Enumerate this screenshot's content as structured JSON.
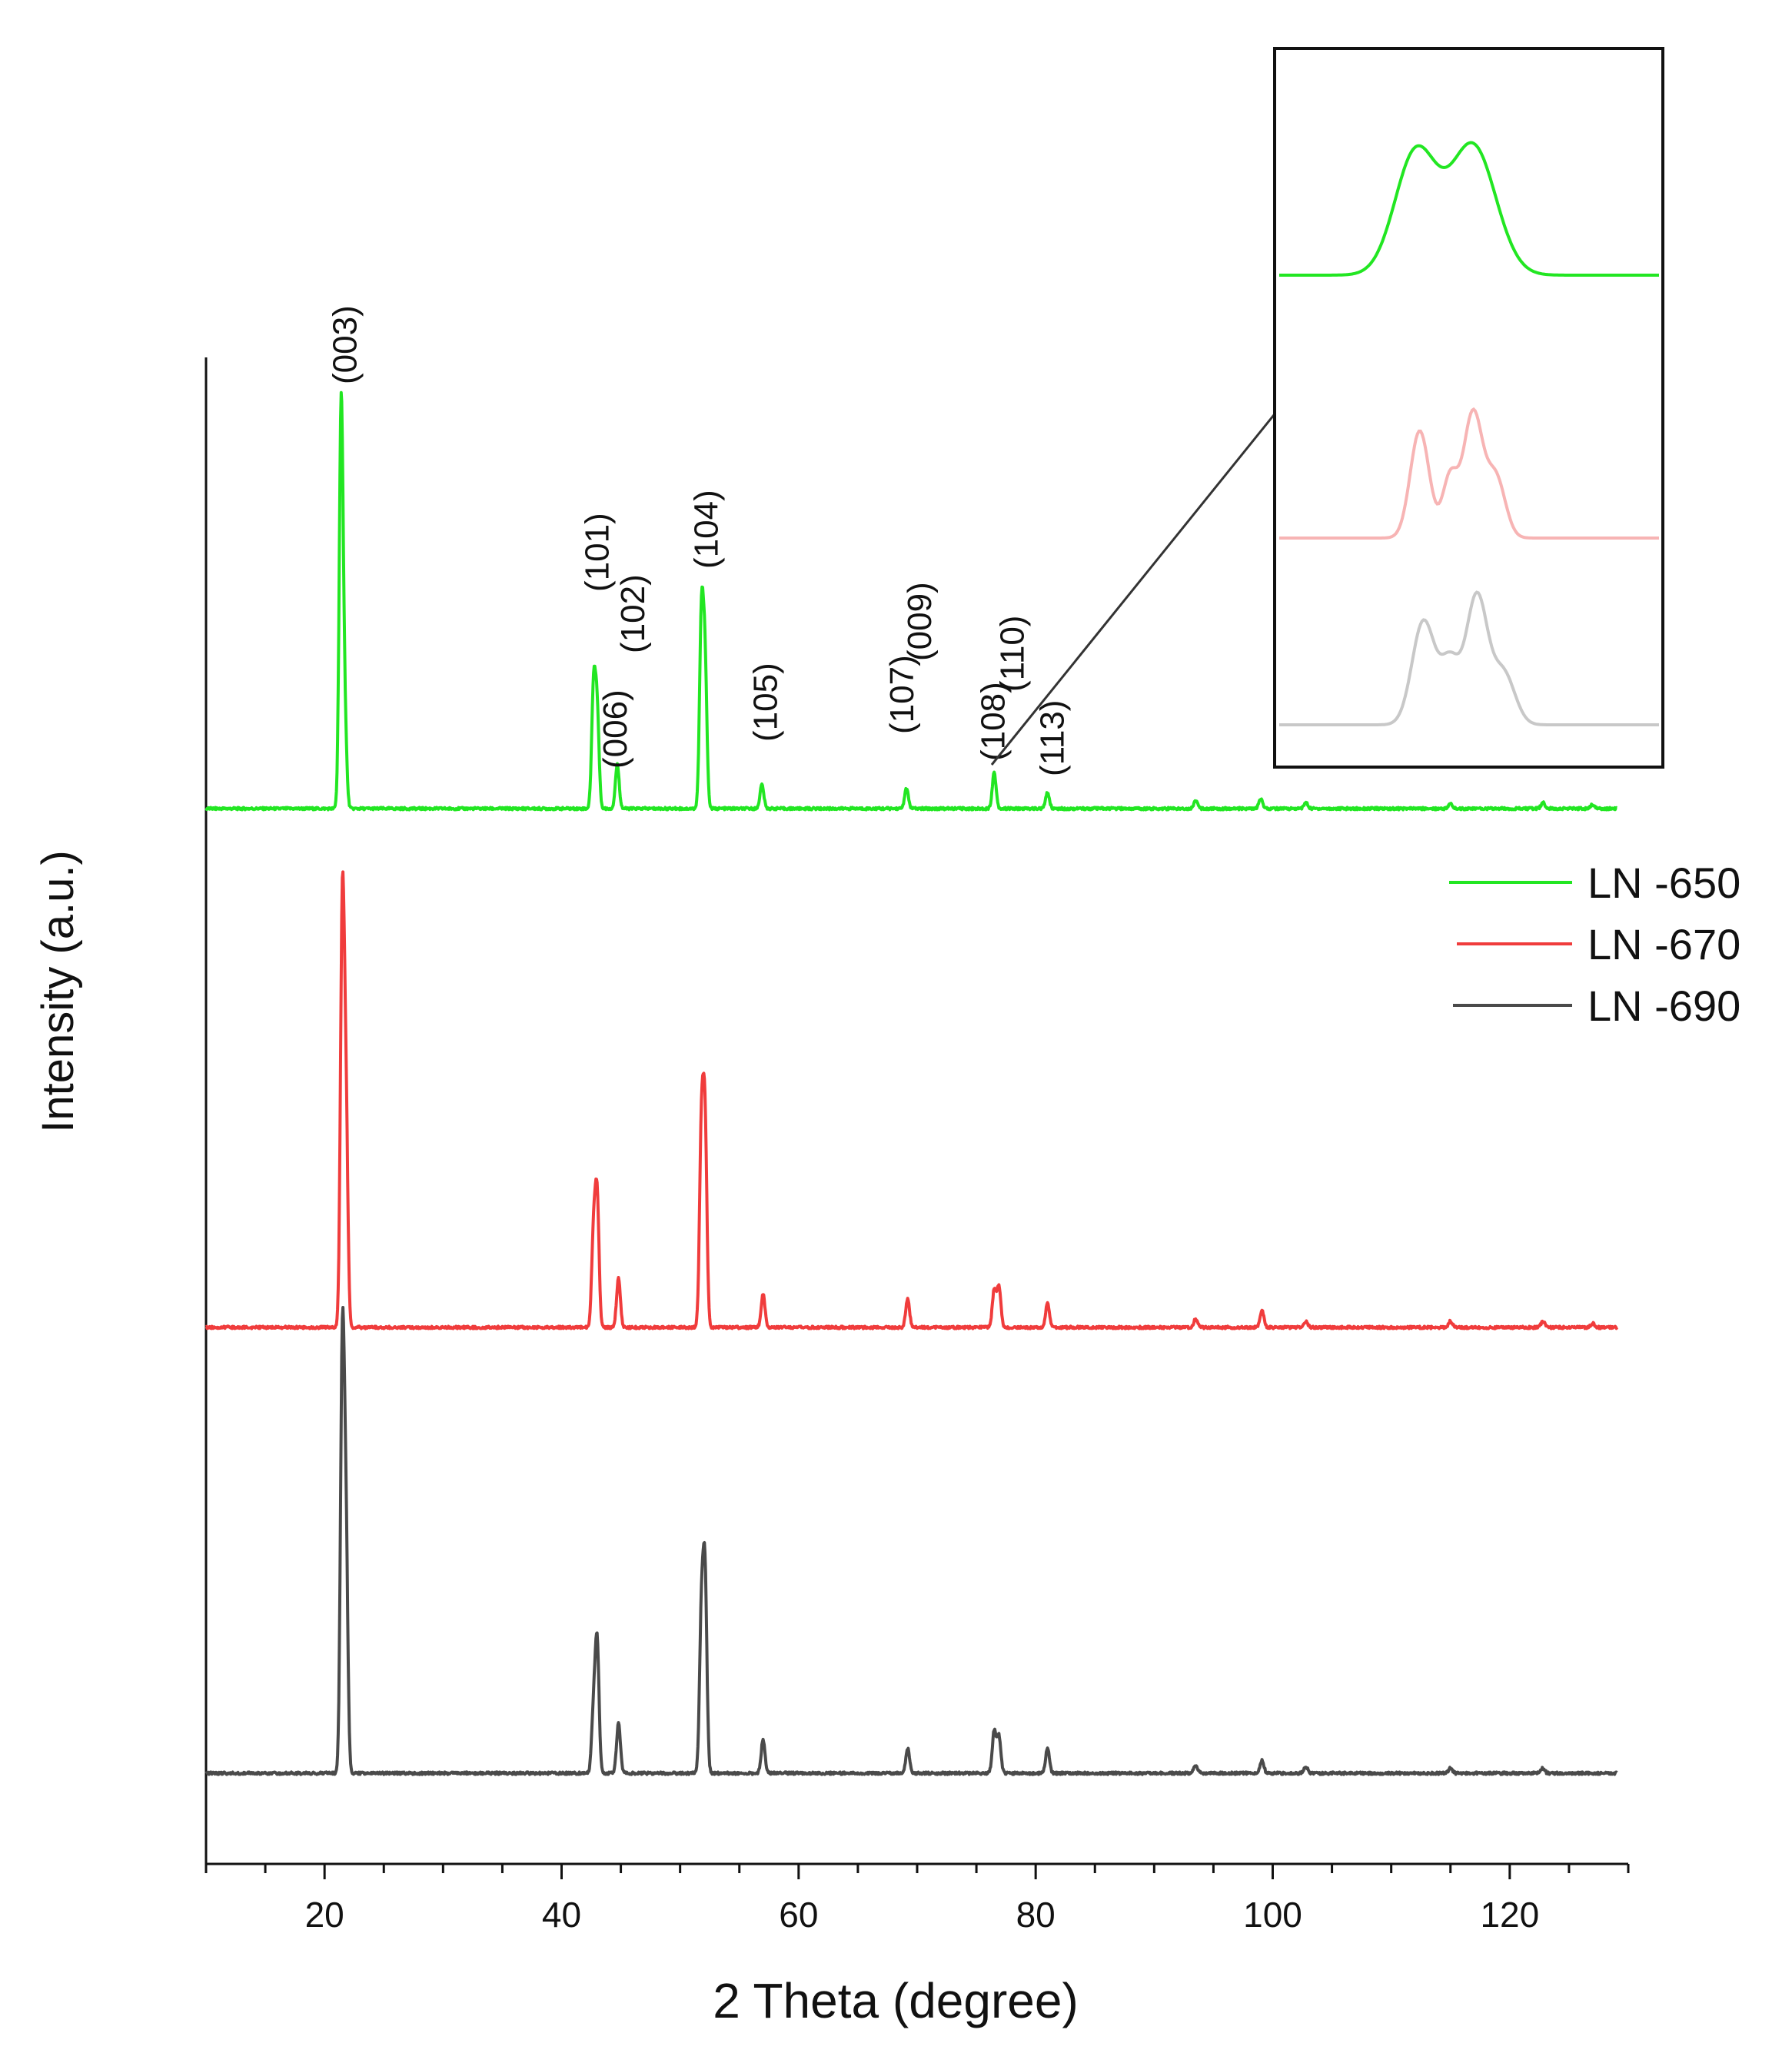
{
  "chart_data": {
    "type": "line",
    "title": "",
    "xlabel": "2 Theta (degree)",
    "ylabel": "Intensity (a.u.)",
    "xlim": [
      10,
      130
    ],
    "xticks": [
      20,
      40,
      60,
      80,
      100,
      120
    ],
    "y_ticks_shown": false,
    "grid": false,
    "legend_position": "right, below inset",
    "series": [
      {
        "name": "LN -650",
        "color": "#22e622",
        "baseline": 0.0,
        "peaks": [
          {
            "x": 21.4,
            "h": 1.0
          },
          {
            "x": 21.7,
            "h": 0.22
          },
          {
            "x": 42.7,
            "h": 0.3
          },
          {
            "x": 43.0,
            "h": 0.24
          },
          {
            "x": 44.7,
            "h": 0.11
          },
          {
            "x": 51.8,
            "h": 0.47
          },
          {
            "x": 52.1,
            "h": 0.36
          },
          {
            "x": 56.9,
            "h": 0.06
          },
          {
            "x": 69.1,
            "h": 0.05
          },
          {
            "x": 76.5,
            "h": 0.09
          },
          {
            "x": 81.0,
            "h": 0.04
          },
          {
            "x": 93.5,
            "h": 0.02
          },
          {
            "x": 99.0,
            "h": 0.025
          },
          {
            "x": 102.8,
            "h": 0.015
          },
          {
            "x": 115.0,
            "h": 0.012
          },
          {
            "x": 122.8,
            "h": 0.015
          },
          {
            "x": 127.0,
            "h": 0.01
          }
        ]
      },
      {
        "name": "LN -670",
        "color": "#f03c3c",
        "baseline": 0.0,
        "peaks": [
          {
            "x": 21.5,
            "h": 1.0
          },
          {
            "x": 21.8,
            "h": 0.53
          },
          {
            "x": 42.7,
            "h": 0.23
          },
          {
            "x": 43.0,
            "h": 0.31
          },
          {
            "x": 44.8,
            "h": 0.12
          },
          {
            "x": 51.8,
            "h": 0.47
          },
          {
            "x": 52.1,
            "h": 0.49
          },
          {
            "x": 57.0,
            "h": 0.08
          },
          {
            "x": 69.2,
            "h": 0.07
          },
          {
            "x": 76.5,
            "h": 0.09
          },
          {
            "x": 76.9,
            "h": 0.1
          },
          {
            "x": 81.0,
            "h": 0.06
          },
          {
            "x": 93.5,
            "h": 0.02
          },
          {
            "x": 99.1,
            "h": 0.04
          },
          {
            "x": 102.8,
            "h": 0.015
          },
          {
            "x": 115.0,
            "h": 0.015
          },
          {
            "x": 122.8,
            "h": 0.015
          },
          {
            "x": 127.0,
            "h": 0.01
          }
        ]
      },
      {
        "name": "LN -690",
        "color": "#4a4a4a",
        "baseline": 0.0,
        "peaks": [
          {
            "x": 21.5,
            "h": 1.0
          },
          {
            "x": 21.8,
            "h": 0.57
          },
          {
            "x": 42.7,
            "h": 0.15
          },
          {
            "x": 43.0,
            "h": 0.31
          },
          {
            "x": 44.8,
            "h": 0.12
          },
          {
            "x": 51.8,
            "h": 0.37
          },
          {
            "x": 52.1,
            "h": 0.47
          },
          {
            "x": 57.0,
            "h": 0.08
          },
          {
            "x": 69.2,
            "h": 0.06
          },
          {
            "x": 76.5,
            "h": 0.1
          },
          {
            "x": 76.9,
            "h": 0.09
          },
          {
            "x": 81.0,
            "h": 0.06
          },
          {
            "x": 93.5,
            "h": 0.02
          },
          {
            "x": 99.1,
            "h": 0.03
          },
          {
            "x": 102.8,
            "h": 0.015
          },
          {
            "x": 115.0,
            "h": 0.012
          },
          {
            "x": 122.8,
            "h": 0.012
          }
        ]
      }
    ],
    "annotations": [
      {
        "text": "(003)",
        "x": 21.5
      },
      {
        "text": "(101)",
        "x": 42.8
      },
      {
        "text": "(006)",
        "x": 44.3
      },
      {
        "text": "(102)",
        "x": 45.8
      },
      {
        "text": "(104)",
        "x": 52.0
      },
      {
        "text": "(105)",
        "x": 57.0
      },
      {
        "text": "(107)",
        "x": 68.5
      },
      {
        "text": "(009)",
        "x": 70.0
      },
      {
        "text": "(108)",
        "x": 76.2
      },
      {
        "text": "(110)",
        "x": 77.8
      },
      {
        "text": "(113)",
        "x": 81.2
      }
    ],
    "inset": {
      "description_source": "zoom of (108)/(110) doublet near 2θ ≈ 76–77°",
      "curves": [
        {
          "series": "LN -650",
          "color": "#22e622",
          "peaks": [
            {
              "c": 0.36,
              "h": 0.78,
              "w": 0.055
            },
            {
              "c": 0.51,
              "h": 0.82,
              "w": 0.06
            }
          ]
        },
        {
          "series": "LN -670",
          "color": "#f7b4b4",
          "peaks": [
            {
              "c": 0.37,
              "h": 0.62,
              "w": 0.025
            },
            {
              "c": 0.45,
              "h": 0.35,
              "w": 0.02
            },
            {
              "c": 0.51,
              "h": 0.72,
              "w": 0.025
            },
            {
              "c": 0.57,
              "h": 0.35,
              "w": 0.025
            }
          ]
        },
        {
          "series": "LN -690",
          "color": "#c8c8c8",
          "peaks": [
            {
              "c": 0.38,
              "h": 0.6,
              "w": 0.03
            },
            {
              "c": 0.45,
              "h": 0.35,
              "w": 0.025
            },
            {
              "c": 0.52,
              "h": 0.74,
              "w": 0.028
            },
            {
              "c": 0.59,
              "h": 0.3,
              "w": 0.03
            }
          ]
        }
      ]
    }
  }
}
